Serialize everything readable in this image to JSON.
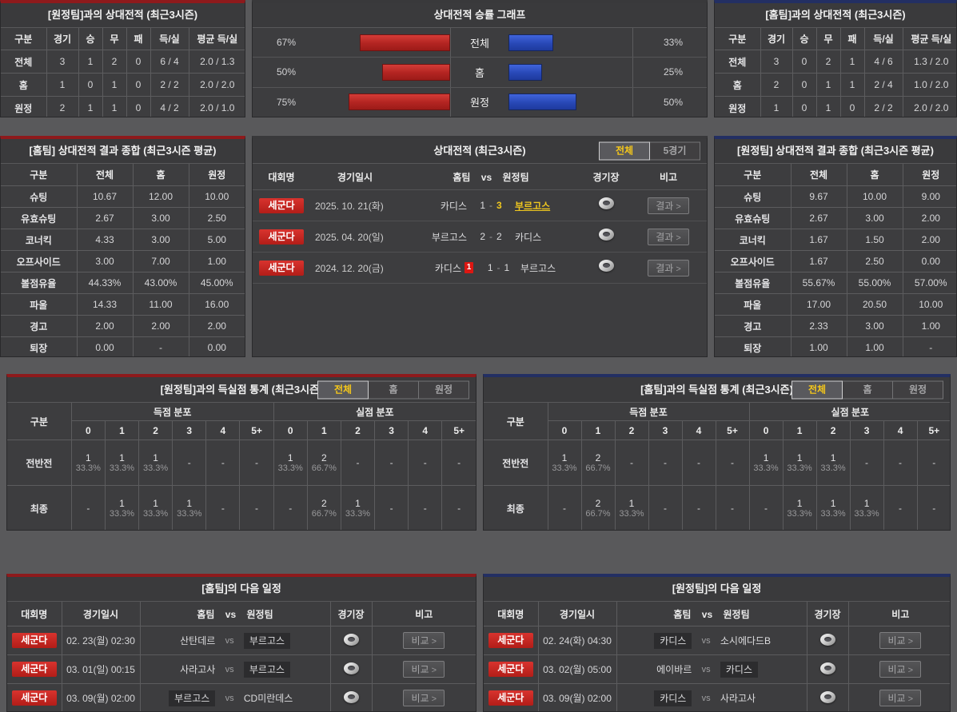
{
  "shared": {
    "empty": "-",
    "dash": "-",
    "vs": "vs",
    "chevron": ">"
  },
  "colors": {
    "page_bg": "#59595b",
    "panel_bg": "#3d3d3f",
    "accent_red": "#8e1a1c",
    "accent_blue": "#232f63",
    "bar_red": "#b22421",
    "bar_blue": "#2848b6",
    "highlight_yellow": "#f0c81e",
    "league_badge_red": "#c6221d"
  },
  "top_left": {
    "title": "[원정팀]과의 상대전적 (최근3시즌)",
    "headers": [
      "구분",
      "경기",
      "승",
      "무",
      "패",
      "득/실",
      "평균 득/실"
    ],
    "rows": [
      [
        "전체",
        "3",
        "1",
        "2",
        "0",
        "6 / 4",
        "2.0 / 1.3"
      ],
      [
        "홈",
        "1",
        "0",
        "1",
        "0",
        "2 / 2",
        "2.0 / 2.0"
      ],
      [
        "원정",
        "2",
        "1",
        "1",
        "0",
        "4 / 2",
        "2.0 / 1.0"
      ]
    ]
  },
  "winrate": {
    "title": "상대전적 승률 그래프",
    "rows": [
      {
        "label": "전체",
        "left_pct": "67%",
        "left_value": 67,
        "right_pct": "33%",
        "right_value": 33
      },
      {
        "label": "홈",
        "left_pct": "50%",
        "left_value": 50,
        "right_pct": "25%",
        "right_value": 25
      },
      {
        "label": "원정",
        "left_pct": "75%",
        "left_value": 75,
        "right_pct": "50%",
        "right_value": 50
      }
    ]
  },
  "top_right": {
    "title": "[홈팀]과의 상대전적 (최근3시즌)",
    "headers": [
      "구분",
      "경기",
      "승",
      "무",
      "패",
      "득/실",
      "평균 득/실"
    ],
    "rows": [
      [
        "전체",
        "3",
        "0",
        "2",
        "1",
        "4 / 6",
        "1.3 / 2.0"
      ],
      [
        "홈",
        "2",
        "0",
        "1",
        "1",
        "2 / 4",
        "1.0 / 2.0"
      ],
      [
        "원정",
        "1",
        "0",
        "1",
        "0",
        "2 / 2",
        "2.0 / 2.0"
      ]
    ]
  },
  "home_summary": {
    "title": "[홈팀] 상대전적 결과 종합 (최근3시즌 평균)",
    "headers": [
      "구분",
      "전체",
      "홈",
      "원정"
    ],
    "rows": [
      [
        "슈팅",
        "10.67",
        "12.00",
        "10.00"
      ],
      [
        "유효슈팅",
        "2.67",
        "3.00",
        "2.50"
      ],
      [
        "코너킥",
        "4.33",
        "3.00",
        "5.00"
      ],
      [
        "오프사이드",
        "3.00",
        "7.00",
        "1.00"
      ],
      [
        "볼점유율",
        "44.33%",
        "43.00%",
        "45.00%"
      ],
      [
        "파울",
        "14.33",
        "11.00",
        "16.00"
      ],
      [
        "경고",
        "2.00",
        "2.00",
        "2.00"
      ],
      [
        "퇴장",
        "0.00",
        "-",
        "0.00"
      ]
    ]
  },
  "away_summary": {
    "title": "[원정팀] 상대전적 결과 종합 (최근3시즌 평균)",
    "headers": [
      "구분",
      "전체",
      "홈",
      "원정"
    ],
    "rows": [
      [
        "슈팅",
        "9.67",
        "10.00",
        "9.00"
      ],
      [
        "유효슈팅",
        "2.67",
        "3.00",
        "2.00"
      ],
      [
        "코너킥",
        "1.67",
        "1.50",
        "2.00"
      ],
      [
        "오프사이드",
        "1.67",
        "2.50",
        "0.00"
      ],
      [
        "볼점유율",
        "55.67%",
        "55.00%",
        "57.00%"
      ],
      [
        "파울",
        "17.00",
        "20.50",
        "10.00"
      ],
      [
        "경고",
        "2.33",
        "3.00",
        "1.00"
      ],
      [
        "퇴장",
        "1.00",
        "1.00",
        "-"
      ]
    ]
  },
  "matches": {
    "title": "상대전적 (최근3시즌)",
    "tabs": [
      {
        "label": "전체",
        "active": true
      },
      {
        "label": "5경기",
        "active": false
      }
    ],
    "headers": [
      "대회명",
      "경기일시",
      "홈팀 vs 원정팀",
      "경기장",
      "비고"
    ],
    "button_label": "결과",
    "rows": [
      {
        "league": "세군다",
        "date": "2025. 10. 21(화)",
        "home": "카디스",
        "home_score": "1",
        "away_score": "3",
        "away": "부르고스",
        "highlight": "away",
        "home_redcards": ""
      },
      {
        "league": "세군다",
        "date": "2025. 04. 20(일)",
        "home": "부르고스",
        "home_score": "2",
        "away_score": "2",
        "away": "카디스",
        "highlight": "",
        "home_redcards": ""
      },
      {
        "league": "세군다",
        "date": "2024. 12. 20(금)",
        "home": "카디스",
        "home_score": "1",
        "away_score": "1",
        "away": "부르고스",
        "highlight": "",
        "home_redcards": "1"
      }
    ]
  },
  "away_goal_stats": {
    "title": "[원정팀]과의 득실점 통계 (최근3시즌)",
    "tabs": [
      {
        "label": "전체",
        "active": true
      },
      {
        "label": "홈",
        "active": false
      },
      {
        "label": "원정",
        "active": false
      }
    ],
    "row_header": "구분",
    "group_scored": "득점 분포",
    "group_conceded": "실점 분포",
    "sub_headers": [
      "0",
      "1",
      "2",
      "3",
      "4",
      "5+"
    ],
    "rows": [
      {
        "label": "전반전",
        "scored": [
          {
            "n": "1",
            "p": "33.3%"
          },
          {
            "n": "1",
            "p": "33.3%"
          },
          {
            "n": "1",
            "p": "33.3%"
          },
          null,
          null,
          null
        ],
        "conceded": [
          {
            "n": "1",
            "p": "33.3%"
          },
          {
            "n": "2",
            "p": "66.7%"
          },
          null,
          null,
          null,
          null
        ]
      },
      {
        "label": "최종",
        "scored": [
          null,
          {
            "n": "1",
            "p": "33.3%"
          },
          {
            "n": "1",
            "p": "33.3%"
          },
          {
            "n": "1",
            "p": "33.3%"
          },
          null,
          null
        ],
        "conceded": [
          null,
          {
            "n": "2",
            "p": "66.7%"
          },
          {
            "n": "1",
            "p": "33.3%"
          },
          null,
          null,
          null
        ]
      }
    ]
  },
  "home_goal_stats": {
    "title": "[홈팀]과의 득실점 통계 (최근3시즌)",
    "tabs": [
      {
        "label": "전체",
        "active": true
      },
      {
        "label": "홈",
        "active": false
      },
      {
        "label": "원정",
        "active": false
      }
    ],
    "row_header": "구분",
    "group_scored": "득점 분포",
    "group_conceded": "실점 분포",
    "sub_headers": [
      "0",
      "1",
      "2",
      "3",
      "4",
      "5+"
    ],
    "rows": [
      {
        "label": "전반전",
        "scored": [
          {
            "n": "1",
            "p": "33.3%"
          },
          {
            "n": "2",
            "p": "66.7%"
          },
          null,
          null,
          null,
          null
        ],
        "conceded": [
          {
            "n": "1",
            "p": "33.3%"
          },
          {
            "n": "1",
            "p": "33.3%"
          },
          {
            "n": "1",
            "p": "33.3%"
          },
          null,
          null,
          null
        ]
      },
      {
        "label": "최종",
        "scored": [
          null,
          {
            "n": "2",
            "p": "66.7%"
          },
          {
            "n": "1",
            "p": "33.3%"
          },
          null,
          null,
          null
        ],
        "conceded": [
          null,
          {
            "n": "1",
            "p": "33.3%"
          },
          {
            "n": "1",
            "p": "33.3%"
          },
          {
            "n": "1",
            "p": "33.3%"
          },
          null,
          null
        ]
      }
    ]
  },
  "home_schedule": {
    "title": "[홈팀]의 다음 일정",
    "headers": [
      "대회명",
      "경기일시",
      "홈팀 vs 원정팀",
      "경기장",
      "비고"
    ],
    "button_label": "비교",
    "rows": [
      {
        "league": "세군다",
        "date": "02. 23(월) 02:30",
        "home": "산탄데르",
        "away": "부르고스",
        "highlight": "away"
      },
      {
        "league": "세군다",
        "date": "03. 01(일) 00:15",
        "home": "사라고사",
        "away": "부르고스",
        "highlight": "away"
      },
      {
        "league": "세군다",
        "date": "03. 09(월) 02:00",
        "home": "부르고스",
        "away": "CD미란데스",
        "highlight": "home"
      }
    ]
  },
  "away_schedule": {
    "title": "[원정팀]의 다음 일정",
    "headers": [
      "대회명",
      "경기일시",
      "홈팀 vs 원정팀",
      "경기장",
      "비고"
    ],
    "button_label": "비교",
    "rows": [
      {
        "league": "세군다",
        "date": "02. 24(화) 04:30",
        "home": "카디스",
        "away": "소시에다드B",
        "highlight": "home"
      },
      {
        "league": "세군다",
        "date": "03. 02(월) 05:00",
        "home": "에이바르",
        "away": "카디스",
        "highlight": "away"
      },
      {
        "league": "세군다",
        "date": "03. 09(월) 02:00",
        "home": "카디스",
        "away": "사라고사",
        "highlight": "home"
      }
    ]
  },
  "chart_data": {
    "type": "bar",
    "title": "상대전적 승률 그래프",
    "categories": [
      "전체",
      "홈",
      "원정"
    ],
    "series": [
      {
        "name": "red_left",
        "values": [
          67,
          50,
          75
        ]
      },
      {
        "name": "blue_right",
        "values": [
          33,
          25,
          50
        ]
      }
    ],
    "unit": "%",
    "xlim": [
      0,
      100
    ],
    "orientation": "horizontal-mirrored"
  }
}
